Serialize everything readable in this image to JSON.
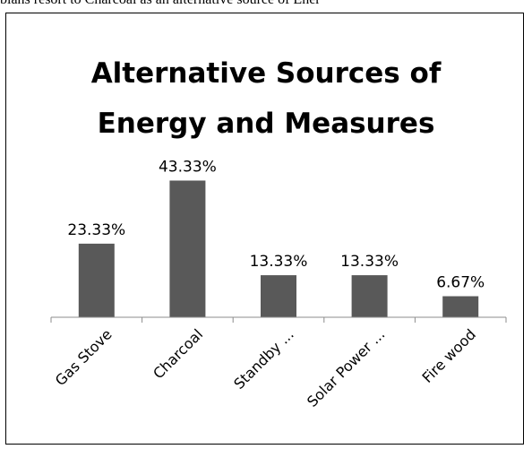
{
  "header_caption": "bians resort to Charcoal as an alternative source of Ener",
  "chart_data": {
    "type": "bar",
    "title_lines": [
      "Alternative Sources of",
      "Energy and Measures"
    ],
    "xlabel": "",
    "ylabel": "",
    "categories": [
      "Gas Stove",
      "Charcoal",
      "Standby ...",
      "Solar Power ...",
      "Fire wood"
    ],
    "values": [
      23.33,
      43.33,
      13.33,
      13.33,
      6.67
    ],
    "data_labels": [
      "23.33%",
      "43.33%",
      "13.33%",
      "13.33%",
      "6.67%"
    ],
    "ylim": [
      0,
      50
    ],
    "grid": false,
    "legend": "none",
    "bar_color": "#595959"
  }
}
